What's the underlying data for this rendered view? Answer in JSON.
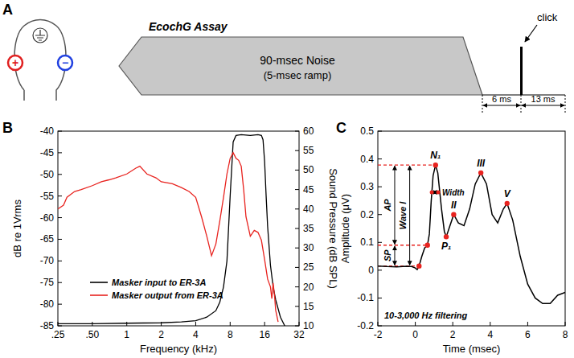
{
  "diagram": {
    "panel": "A",
    "title": "EcochG Assay",
    "noise_label": "90-msec Noise",
    "ramp_label": "(5-msec ramp)",
    "click_label": "click",
    "intervals": [
      "6 ms",
      "13 ms"
    ],
    "electrodes": [
      "+",
      "−"
    ]
  },
  "chart_data": [
    {
      "panel": "B",
      "type": "line",
      "xlabel": "Frequency (kHz)",
      "ylabel": "dB re 1Vrms",
      "y2label": "Sound Pressure (dB SPL)",
      "log": "x",
      "grid": false,
      "legend": "lower left",
      "xlim": [
        0.25,
        32
      ],
      "xticks": [
        {
          "value": 0.25,
          "label": ".25"
        },
        {
          "value": 0.5,
          "label": ".50"
        },
        1,
        2,
        4,
        8,
        16,
        32
      ],
      "ylim": [
        -85,
        -40
      ],
      "yticks": [
        -85,
        -80,
        -75,
        -70,
        -65,
        -60,
        -55,
        -50,
        -45,
        -40
      ],
      "y2lim": [
        10,
        60
      ],
      "y2ticks": [
        10,
        15,
        20,
        25,
        30,
        35,
        40,
        45,
        50,
        55,
        60
      ],
      "series": [
        {
          "name": "Masker input to ER-3A",
          "color": "#000000",
          "x": [
            0.25,
            0.5,
            1,
            2,
            3,
            4,
            5,
            6,
            6.5,
            7,
            7.5,
            8,
            8.5,
            9,
            10,
            12,
            14,
            15,
            15.5,
            16,
            16.5,
            17,
            18,
            19,
            20,
            22,
            24
          ],
          "values": [
            -84.5,
            -84.5,
            -84.4,
            -84.3,
            -84.1,
            -83.8,
            -83,
            -81.5,
            -79.5,
            -76,
            -70,
            -55,
            -42.5,
            -41,
            -40.8,
            -41,
            -40.8,
            -41,
            -42,
            -47,
            -55,
            -62,
            -71,
            -76,
            -79,
            -83,
            -85
          ]
        },
        {
          "name": "Masker output from ER-3A",
          "color": "#e8231f",
          "axis": "y2",
          "x": [
            0.25,
            0.28,
            0.3,
            0.35,
            0.4,
            0.5,
            0.6,
            0.7,
            0.8,
            1,
            1.2,
            1.3,
            1.5,
            1.8,
            2,
            2.5,
            3,
            3.5,
            4,
            4.5,
            5,
            5.5,
            6,
            6.5,
            7,
            7.5,
            8,
            8.5,
            9,
            9.5,
            10,
            10.5,
            11,
            12,
            13,
            14,
            15,
            16,
            17,
            18,
            18.5,
            19,
            19.5,
            20,
            21
          ],
          "values": [
            40,
            41,
            43,
            44.5,
            45,
            46,
            47,
            47.5,
            48,
            49,
            50.5,
            51,
            49,
            48,
            47,
            46.5,
            45.5,
            44.5,
            43,
            38,
            33,
            28,
            31,
            37,
            43,
            49,
            53,
            54.5,
            53,
            52.5,
            51,
            45,
            38,
            33,
            34.5,
            34,
            32,
            27,
            22,
            20,
            17,
            21,
            18,
            14,
            11
          ]
        }
      ]
    },
    {
      "panel": "C",
      "type": "line",
      "xlabel": "Time (msec)",
      "ylabel": "Amplitude (μV)",
      "annotation": "10-3,000 Hz filtering",
      "grid": false,
      "xlim": [
        -2,
        8
      ],
      "xticks": [
        -2,
        0,
        2,
        4,
        6,
        8
      ],
      "ylim": [
        -0.2,
        0.5
      ],
      "yticks": [
        -0.2,
        -0.1,
        0,
        0.1,
        0.2,
        0.3,
        0.4,
        0.5
      ],
      "series": [
        {
          "color": "#000000",
          "x": [
            -2,
            -1.5,
            -1,
            -0.5,
            -0.2,
            0,
            0.1,
            0.2,
            0.35,
            0.5,
            0.65,
            0.75,
            0.85,
            0.95,
            1.08,
            1.2,
            1.4,
            1.55,
            1.65,
            1.8,
            2.05,
            2.3,
            2.6,
            2.9,
            3.2,
            3.5,
            3.8,
            4.1,
            4.4,
            4.7,
            4.9,
            5.2,
            5.6,
            6,
            6.4,
            6.8,
            7.2,
            7.6,
            8
          ],
          "values": [
            0.015,
            0.013,
            0.012,
            0.014,
            0.013,
            0.008,
            0.002,
            0.015,
            0.05,
            0.08,
            0.09,
            0.13,
            0.25,
            0.34,
            0.378,
            0.35,
            0.22,
            0.14,
            0.12,
            0.15,
            0.2,
            0.17,
            0.16,
            0.22,
            0.31,
            0.35,
            0.31,
            0.2,
            0.17,
            0.22,
            0.24,
            0.18,
            0.05,
            -0.05,
            -0.1,
            -0.12,
            -0.12,
            -0.09,
            -0.08
          ]
        },
        {
          "type": "scatter",
          "marker": "circle",
          "color": "#e8231f",
          "x": [
            0.2,
            0.65,
            1.08,
            1.65,
            2.05,
            3.5,
            4.9
          ],
          "values": [
            0.015,
            0.09,
            0.378,
            0.12,
            0.2,
            0.35,
            0.24
          ],
          "labels": [
            null,
            null,
            "N₁",
            "P₁",
            "II",
            "III",
            "V"
          ]
        }
      ],
      "reference_lines": [
        {
          "y": 0.378,
          "x_to": 1.08
        },
        {
          "y": 0.09,
          "x_to": 0.65
        },
        {
          "y": 0.015,
          "x_to": 0.2
        }
      ],
      "annotations": [
        {
          "label": "AP",
          "x": -1.1,
          "y": [
            0.09,
            0.378
          ]
        },
        {
          "label": "SP",
          "x": -1.1,
          "y": [
            0.015,
            0.09
          ]
        },
        {
          "label": "Wave I",
          "x": -0.3,
          "y": [
            0.015,
            0.378
          ]
        },
        {
          "label": "Width",
          "y": 0.28,
          "x": [
            0.88,
            1.22
          ]
        }
      ]
    }
  ]
}
